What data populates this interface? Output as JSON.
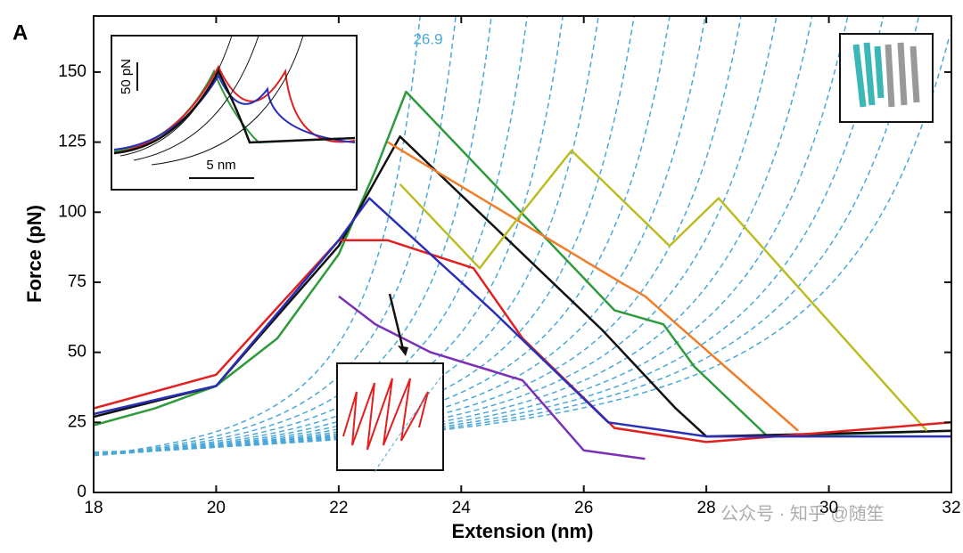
{
  "chart_data": {
    "type": "line",
    "panel_label": "A",
    "xlabel": "Extension (nm)",
    "ylabel": "Force (pN)",
    "xlim": [
      18,
      32
    ],
    "xticks": [
      18,
      20,
      22,
      24,
      26,
      28,
      30,
      32
    ],
    "ylim": [
      0,
      170
    ],
    "yticks": [
      0,
      25,
      50,
      75,
      100,
      125,
      150
    ],
    "annotation": "26.9",
    "inset_scale_force": "50 pN",
    "inset_scale_extension": "5 nm",
    "watermark": "公众号 · 知乎 @随笙",
    "series": [
      {
        "color": "#2e9a3c",
        "x": [
          18,
          19,
          20,
          21,
          22,
          22.6,
          23.1,
          26.5,
          27.3,
          27.8,
          29,
          32
        ],
        "values": [
          24,
          30,
          38,
          55,
          85,
          115,
          143,
          65,
          60,
          45,
          20,
          22
        ]
      },
      {
        "color": "#111111",
        "x": [
          18,
          20,
          22,
          23,
          26.3,
          27.5,
          28,
          32
        ],
        "values": [
          27,
          38,
          88,
          127,
          58,
          30,
          20,
          22
        ]
      },
      {
        "color": "#f07d28",
        "x": [
          22.8,
          26.6,
          27,
          29.5
        ],
        "values": [
          125,
          75,
          70,
          22
        ]
      },
      {
        "color": "#bcbc22",
        "x": [
          23,
          24.3,
          25,
          25.8,
          27.4,
          28.2,
          31.6
        ],
        "values": [
          110,
          80,
          100,
          122,
          88,
          105,
          22
        ]
      },
      {
        "color": "#e22020",
        "x": [
          18,
          20,
          22,
          22.8,
          24.2,
          25,
          26.5,
          28,
          32
        ],
        "values": [
          30,
          42,
          90,
          90,
          80,
          55,
          23,
          18,
          25
        ]
      },
      {
        "color": "#2a2fb8",
        "x": [
          18,
          20,
          22,
          22.5,
          24.5,
          26.4,
          28,
          32
        ],
        "values": [
          28,
          38,
          90,
          105,
          65,
          25,
          20,
          20
        ]
      },
      {
        "color": "#7b2fb5",
        "x": [
          22,
          22.6,
          23.5,
          24.4,
          25,
          26,
          27
        ],
        "values": [
          70,
          60,
          50,
          44,
          40,
          15,
          12
        ]
      }
    ]
  }
}
